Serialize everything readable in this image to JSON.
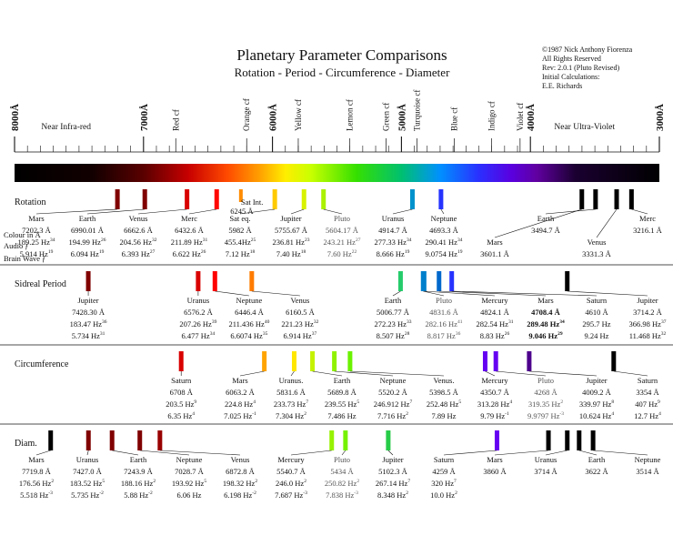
{
  "chart_data": {
    "type": "spectrum-comparison",
    "title": "Planetary Parameter Comparisons",
    "subtitle": "Rotation - Period - Circumference - Diameter",
    "copyright": [
      "©1987 Nick Anthony Fiorenza",
      "All Rights Reserved",
      "Rev: 2.0.1 (Pluto Revised)",
      "Initial Calculations:",
      "E.E. Richards"
    ],
    "axis": {
      "unit": "Å",
      "range": [
        8000,
        3000
      ],
      "major_ticks": [
        "8000Å",
        "7000Å",
        "6000Å",
        "5000Å",
        "4000Å",
        "3000Å"
      ],
      "color_names": [
        {
          "label": "Red cf",
          "wl": 6750
        },
        {
          "label": "Orange cf",
          "wl": 6200
        },
        {
          "label": "Yellow cf",
          "wl": 5800
        },
        {
          "label": "Lemon cf",
          "wl": 5400
        },
        {
          "label": "Green cf",
          "wl": 5120
        },
        {
          "label": "Turquoise cf",
          "wl": 4880
        },
        {
          "label": "Blue cf",
          "wl": 4590
        },
        {
          "label": "Indigo cf",
          "wl": 4300
        },
        {
          "label": "Violet cf",
          "wl": 4080
        }
      ],
      "regions": [
        {
          "label": "Near Infra-red",
          "wl": 7600
        },
        {
          "label": "Near Ultra-Violet",
          "wl": 3580
        }
      ]
    },
    "row_labels": [
      "Colour in Å",
      "Audio ƒ",
      "Brain Wave ƒ"
    ],
    "sections": [
      {
        "name": "Rotation",
        "entries": [
          {
            "planet": "Mars",
            "value": "7202.3 Å",
            "audio": "189.25 Hz",
            "audio_exp": "34",
            "brain": "5.914 Hz",
            "brain_exp": "19",
            "wl": 7202.3,
            "bar_wl": 7202.3
          },
          {
            "planet": "Earth",
            "value": "6990.01 Å",
            "audio": "194.99 Hz",
            "audio_exp": "26",
            "brain": "6.094 Hz",
            "brain_exp": "19",
            "wl": 6990.01,
            "bar_wl": 6990.01
          },
          {
            "planet": "Venus",
            "value": "6662.6 Å",
            "audio": "204.56 Hz",
            "audio_exp": "32",
            "brain": "6.393 Hz",
            "brain_exp": "27",
            "wl": 6662.6,
            "bar_wl": 6662.6
          },
          {
            "planet": "Merc",
            "value": "6432.6 Å",
            "audio": "211.89 Hz",
            "audio_exp": "31",
            "brain": "6.622 Hz",
            "brain_exp": "26",
            "wl": 6432.6,
            "bar_wl": 6432.6
          },
          {
            "planet": "Sat eq.",
            "value": "5982 Å",
            "audio": "455.4Hz",
            "audio_exp": "25",
            "brain": "7.12 Hz",
            "brain_exp": "18",
            "wl": 5982,
            "bar_wl": 5982
          },
          {
            "planet": "Jupiter",
            "value": "5755.67 Å",
            "audio": "236.81 Hz",
            "audio_exp": "23",
            "brain": "7.40 Hz",
            "brain_exp": "18",
            "wl": 5755.67,
            "bar_wl": 5755.67
          },
          {
            "planet": "Pluto",
            "value": "5604.17 Å",
            "audio": "243.21 Hz",
            "audio_exp": "27",
            "brain": "7.60 Hz",
            "brain_exp": "22",
            "wl": 5604.17,
            "bar_wl": 5604.17,
            "faint": true
          },
          {
            "planet": "Uranus",
            "value": "4914.7 Å",
            "audio": "277.33 Hz",
            "audio_exp": "34",
            "brain": "8.666 Hz",
            "brain_exp": "19",
            "wl": 4914.7,
            "bar_wl": 4914.7
          },
          {
            "planet": "Neptune",
            "value": "4693.3 Å",
            "audio": "290.41 Hz",
            "audio_exp": "34",
            "brain": "9.0754 Hz",
            "brain_exp": "19",
            "wl": 4693.3,
            "bar_wl": 4693.3
          },
          {
            "planet": "Mars",
            "value": "3601.1 Å",
            "wl": 3601.1,
            "bar_wl": 3601.1,
            "low": true
          },
          {
            "planet": "Earth",
            "value": "3494.7 Å",
            "wl": 3494.7,
            "bar_wl": 3494.7
          },
          {
            "planet": "Venus",
            "value": "3331.3 Å",
            "wl": 3331.3,
            "bar_wl": 3331.3,
            "low": true
          },
          {
            "planet": "Merc",
            "value": "3216.1 Å",
            "wl": 3216.1,
            "bar_wl": 3216.1
          }
        ],
        "extra_note": {
          "line1": "Sat Int.",
          "line2": "6245 Å",
          "wl": 6245
        }
      },
      {
        "name": "Sidreal Period",
        "entries": [
          {
            "planet": "Jupiter",
            "value": "7428.30 Å",
            "audio": "183.47 Hz",
            "audio_exp": "36",
            "brain": "5.734 Hz",
            "brain_exp": "31",
            "wl": 7428.3,
            "bar_wl": 7428.3
          },
          {
            "planet": "Uranus",
            "value": "6576.2 Å",
            "audio": "207.26 Hz",
            "audio_exp": "39",
            "brain": "6.477 Hz",
            "brain_exp": "34",
            "wl": 6576.2,
            "bar_wl": 6576.2
          },
          {
            "planet": "Neptune",
            "value": "6446.4 Å",
            "audio": "211.436 Hz",
            "audio_exp": "40",
            "brain": "6.6074 Hz",
            "brain_exp": "35",
            "wl": 6446.4,
            "bar_wl": 6446.4
          },
          {
            "planet": "Venus",
            "value": "6160.5 Å",
            "audio": "221.23 Hz",
            "audio_exp": "32",
            "brain": "6.914 Hz",
            "brain_exp": "37",
            "wl": 6160.5,
            "bar_wl": 6160.5
          },
          {
            "planet": "Earth",
            "value": "5006.77 Å",
            "audio": "272.23 Hz",
            "audio_exp": "33",
            "brain": "8.507 Hz",
            "brain_exp": "28",
            "wl": 5006.77,
            "bar_wl": 5006.77
          },
          {
            "planet": "Pluto",
            "value": "4831.6 Å",
            "audio": "282.16 Hz",
            "audio_exp": "41",
            "brain": "8.817 Hz",
            "brain_exp": "36",
            "wl": 4831.6,
            "bar_wl": 4831.6,
            "faint": true
          },
          {
            "planet": "Mercury",
            "value": "4824.1 Å",
            "audio": "282.54 Hz",
            "audio_exp": "31",
            "brain": "8.83 Hz",
            "brain_exp": "26",
            "wl": 4824.1,
            "bar_wl": 4824.1
          },
          {
            "planet": "Mars",
            "value": "4708.4 Å",
            "audio": "289.48 Hz",
            "audio_exp": "34",
            "brain": "9.046 Hz",
            "brain_exp": "29",
            "wl": 4708.4,
            "bar_wl": 4708.4,
            "bold": true
          },
          {
            "planet": "Saturn",
            "value": "4610 Å",
            "audio": "295.7 Hz",
            "audio_exp": "",
            "brain": "9.24 Hz",
            "brain_exp": "",
            "wl": 4610,
            "bar_wl": 4610
          },
          {
            "planet": "Jupiter",
            "value": "3714.2 Å",
            "audio": "366.98 Hz",
            "audio_exp": "37",
            "brain": "11.468 Hz",
            "brain_exp": "32",
            "wl": 3714.2,
            "bar_wl": 3714.2
          }
        ]
      },
      {
        "name": "Circumference",
        "entries": [
          {
            "planet": "Saturn",
            "value": "6708 Å",
            "audio": "203.5 Hz",
            "audio_exp": "9",
            "brain": "6.35 Hz",
            "brain_exp": "4",
            "wl": 6708,
            "bar_wl": 6708
          },
          {
            "planet": "Mars",
            "value": "6063.2 Å",
            "audio": "224.8 Hz",
            "audio_exp": "4",
            "brain": "7.025 Hz",
            "brain_exp": "-1",
            "wl": 6063.2,
            "bar_wl": 6063.2
          },
          {
            "planet": "Uranus.",
            "value": "5831.6 Å",
            "audio": "233.73 Hz",
            "audio_exp": "7",
            "brain": "7.304 Hz",
            "brain_exp": "2",
            "wl": 5831.6,
            "bar_wl": 5831.6
          },
          {
            "planet": "Earth",
            "value": "5689.8 Å",
            "audio": "239.55 Hz",
            "audio_exp": "5",
            "brain": "7.486 Hz",
            "brain_exp": "",
            "wl": 5689.8,
            "bar_wl": 5689.8
          },
          {
            "planet": "Neptune",
            "value": "5520.2 Å",
            "audio": "246.912 Hz",
            "audio_exp": "7",
            "brain": "7.716 Hz",
            "brain_exp": "2",
            "wl": 5520.2,
            "bar_wl": 5520.2
          },
          {
            "planet": "Venus.",
            "value": "5398.5 Å",
            "audio": "252.48 Hz",
            "audio_exp": "5",
            "brain": "7.89 Hz",
            "brain_exp": "",
            "wl": 5398.5,
            "bar_wl": 5398.5
          },
          {
            "planet": "Mercury",
            "value": "4350.7 Å",
            "audio": "313.28 Hz",
            "audio_exp": "4",
            "brain": "9.79 Hz",
            "brain_exp": "-1",
            "wl": 4350.7,
            "bar_wl": 4350.7
          },
          {
            "planet": "Pluto",
            "value": "4268 Å",
            "audio": "319.35 Hz",
            "audio_exp": "2",
            "brain": "9.9797 Hz",
            "brain_exp": "-3",
            "wl": 4268,
            "bar_wl": 4268,
            "faint": true
          },
          {
            "planet": "Jupiter",
            "value": "4009.2 Å",
            "audio": "339.97 Hz",
            "audio_exp": "8",
            "brain": "10.624 Hz",
            "brain_exp": "4",
            "wl": 4009.2,
            "bar_wl": 4009.2
          },
          {
            "planet": "Saturn",
            "value": "3354 Å",
            "audio": "407 Hz",
            "audio_exp": "9",
            "brain": "12.7 Hz",
            "brain_exp": "4",
            "wl": 3354,
            "bar_wl": 3354
          }
        ]
      },
      {
        "name": "Diam.",
        "entries": [
          {
            "planet": "Mars",
            "value": "7719.8 Å",
            "audio": "176.56 Hz",
            "audio_exp": "2",
            "brain": "5.518 Hz",
            "brain_exp": "-3",
            "wl": 7719.8,
            "bar_wl": 7719.8
          },
          {
            "planet": "Uranus",
            "value": "7427.0 Å",
            "audio": "183.52 Hz",
            "audio_exp": "5",
            "brain": "5.735 Hz",
            "brain_exp": "-2",
            "wl": 7427.0,
            "bar_wl": 7427.0
          },
          {
            "planet": "Earth",
            "value": "7243.9 Å",
            "audio": "188.16 Hz",
            "audio_exp": "2",
            "brain": "5.88 Hz",
            "brain_exp": "-2",
            "wl": 7243.9,
            "bar_wl": 7243.9
          },
          {
            "planet": "Neptune",
            "value": "7028.7 Å",
            "audio": "193.92 Hz",
            "audio_exp": "5",
            "brain": "6.06 Hz",
            "brain_exp": "",
            "wl": 7028.7,
            "bar_wl": 7028.7
          },
          {
            "planet": "Venus",
            "value": "6872.8 Å",
            "audio": "198.32 Hz",
            "audio_exp": "2",
            "brain": "6.198 Hz",
            "brain_exp": "-2",
            "wl": 6872.8,
            "bar_wl": 6872.8
          },
          {
            "planet": "Mercury",
            "value": "5540.7 Å",
            "audio": "246.0 Hz",
            "audio_exp": "2",
            "brain": "7.687 Hz",
            "brain_exp": "-3",
            "wl": 5540.7,
            "bar_wl": 5540.7
          },
          {
            "planet": "Pluto",
            "value": "5434 Å",
            "audio": "250.82 Hz",
            "audio_exp": "2",
            "brain": "7.838 Hz",
            "brain_exp": "-3",
            "wl": 5434,
            "bar_wl": 5434,
            "faint": true
          },
          {
            "planet": "Jupiter",
            "value": "5102.3 Å",
            "audio": "267.14 Hz",
            "audio_exp": "7",
            "brain": "8.348 Hz",
            "brain_exp": "2",
            "wl": 5102.3,
            "bar_wl": 5102.3
          },
          {
            "planet": "Saturn",
            "value": "4259 Å",
            "audio": "320 Hz",
            "audio_exp": "7",
            "brain": "10.0 Hz",
            "brain_exp": "2",
            "wl": 4259,
            "bar_wl": 4259
          },
          {
            "planet": "Mars",
            "value": "3860 Å",
            "wl": 3860,
            "bar_wl": 3860
          },
          {
            "planet": "Uranus",
            "value": "3714 Å",
            "wl": 3714,
            "bar_wl": 3714
          },
          {
            "planet": "Earth",
            "value": "3622 Å",
            "wl": 3622,
            "bar_wl": 3622
          },
          {
            "planet": "Neptune",
            "value": "3514 Å",
            "wl": 3514,
            "bar_wl": 3514
          }
        ]
      }
    ]
  }
}
